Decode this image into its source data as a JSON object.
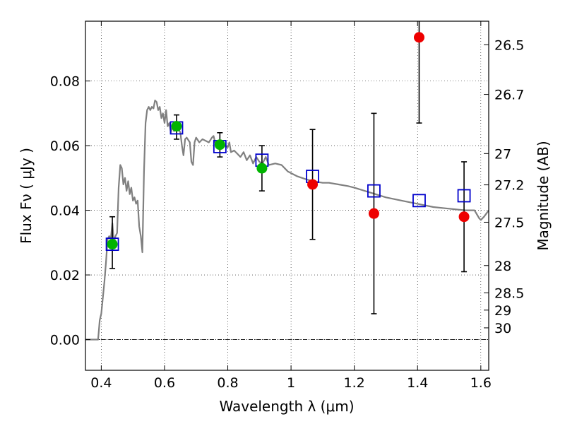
{
  "chart_data": {
    "type": "scatter",
    "xlabel": "Wavelength  λ (μm)",
    "ylabel": "Flux  Fν  ( μJy )",
    "y2label": "Magnitude (AB)",
    "xlim": [
      0.35,
      1.625
    ],
    "ylim": [
      -0.0095,
      0.0985
    ],
    "grid": true,
    "x_ticks": [
      {
        "value": 0.4,
        "label": "0.4"
      },
      {
        "value": 0.6,
        "label": "0.6"
      },
      {
        "value": 0.8,
        "label": "0.8"
      },
      {
        "value": 1.0,
        "label": "1"
      },
      {
        "value": 1.2,
        "label": "1.2"
      },
      {
        "value": 1.4,
        "label": "1.4"
      },
      {
        "value": 1.6,
        "label": "1.6"
      }
    ],
    "y_ticks": [
      {
        "value": 0.0,
        "label": "0.00"
      },
      {
        "value": 0.02,
        "label": "0.02"
      },
      {
        "value": 0.04,
        "label": "0.04"
      },
      {
        "value": 0.06,
        "label": "0.06"
      },
      {
        "value": 0.08,
        "label": "0.08"
      }
    ],
    "y2_ticks": [
      {
        "value": 26.5,
        "label": "26.5"
      },
      {
        "value": 26.7,
        "label": "26.7"
      },
      {
        "value": 27.0,
        "label": "27"
      },
      {
        "value": 27.2,
        "label": "27.2"
      },
      {
        "value": 27.5,
        "label": "27.5"
      },
      {
        "value": 28.0,
        "label": "28"
      },
      {
        "value": 28.5,
        "label": "28.5"
      },
      {
        "value": 29.0,
        "label": "29"
      },
      {
        "value": 30.0,
        "label": "30"
      }
    ],
    "series": [
      {
        "kind": "model_sed",
        "color": "#808080",
        "points": [
          [
            0.35,
            0.0
          ],
          [
            0.38,
            0.0
          ],
          [
            0.39,
            0.0
          ],
          [
            0.395,
            0.006
          ],
          [
            0.4,
            0.008
          ],
          [
            0.41,
            0.018
          ],
          [
            0.415,
            0.024
          ],
          [
            0.42,
            0.031
          ],
          [
            0.425,
            0.032
          ],
          [
            0.43,
            0.031
          ],
          [
            0.435,
            0.036
          ],
          [
            0.44,
            0.03
          ],
          [
            0.445,
            0.032
          ],
          [
            0.45,
            0.033
          ],
          [
            0.455,
            0.047
          ],
          [
            0.46,
            0.054
          ],
          [
            0.465,
            0.053
          ],
          [
            0.47,
            0.048
          ],
          [
            0.475,
            0.05
          ],
          [
            0.48,
            0.046
          ],
          [
            0.485,
            0.049
          ],
          [
            0.49,
            0.045
          ],
          [
            0.495,
            0.047
          ],
          [
            0.5,
            0.043
          ],
          [
            0.505,
            0.044
          ],
          [
            0.51,
            0.042
          ],
          [
            0.515,
            0.043
          ],
          [
            0.52,
            0.035
          ],
          [
            0.525,
            0.032
          ],
          [
            0.53,
            0.027
          ],
          [
            0.535,
            0.052
          ],
          [
            0.54,
            0.067
          ],
          [
            0.545,
            0.071
          ],
          [
            0.55,
            0.072
          ],
          [
            0.555,
            0.071
          ],
          [
            0.56,
            0.072
          ],
          [
            0.565,
            0.0715
          ],
          [
            0.57,
            0.074
          ],
          [
            0.575,
            0.0735
          ],
          [
            0.58,
            0.071
          ],
          [
            0.585,
            0.072
          ],
          [
            0.59,
            0.0685
          ],
          [
            0.595,
            0.07
          ],
          [
            0.6,
            0.067
          ],
          [
            0.605,
            0.071
          ],
          [
            0.61,
            0.066
          ],
          [
            0.615,
            0.067
          ],
          [
            0.62,
            0.064
          ],
          [
            0.625,
            0.066
          ],
          [
            0.63,
            0.0645
          ],
          [
            0.64,
            0.066
          ],
          [
            0.65,
            0.064
          ],
          [
            0.655,
            0.06
          ],
          [
            0.66,
            0.057
          ],
          [
            0.665,
            0.062
          ],
          [
            0.67,
            0.0625
          ],
          [
            0.68,
            0.061
          ],
          [
            0.685,
            0.055
          ],
          [
            0.69,
            0.054
          ],
          [
            0.695,
            0.061
          ],
          [
            0.7,
            0.0625
          ],
          [
            0.71,
            0.061
          ],
          [
            0.72,
            0.062
          ],
          [
            0.73,
            0.0615
          ],
          [
            0.74,
            0.061
          ],
          [
            0.75,
            0.0625
          ],
          [
            0.755,
            0.063
          ],
          [
            0.76,
            0.061
          ],
          [
            0.77,
            0.061
          ],
          [
            0.78,
            0.0605
          ],
          [
            0.79,
            0.06
          ],
          [
            0.8,
            0.0595
          ],
          [
            0.805,
            0.061
          ],
          [
            0.81,
            0.058
          ],
          [
            0.82,
            0.0585
          ],
          [
            0.83,
            0.0575
          ],
          [
            0.84,
            0.0565
          ],
          [
            0.85,
            0.058
          ],
          [
            0.86,
            0.0555
          ],
          [
            0.87,
            0.057
          ],
          [
            0.88,
            0.0545
          ],
          [
            0.89,
            0.0565
          ],
          [
            0.9,
            0.055
          ],
          [
            0.91,
            0.0545
          ],
          [
            0.92,
            0.0565
          ],
          [
            0.93,
            0.054
          ],
          [
            0.95,
            0.0545
          ],
          [
            0.97,
            0.054
          ],
          [
            0.99,
            0.052
          ],
          [
            1.0,
            0.0515
          ],
          [
            1.02,
            0.0505
          ],
          [
            1.05,
            0.0495
          ],
          [
            1.07,
            0.049
          ],
          [
            1.1,
            0.0485
          ],
          [
            1.12,
            0.0485
          ],
          [
            1.15,
            0.048
          ],
          [
            1.18,
            0.0475
          ],
          [
            1.2,
            0.047
          ],
          [
            1.25,
            0.0455
          ],
          [
            1.3,
            0.044
          ],
          [
            1.35,
            0.043
          ],
          [
            1.4,
            0.042
          ],
          [
            1.45,
            0.041
          ],
          [
            1.5,
            0.0405
          ],
          [
            1.55,
            0.04
          ],
          [
            1.58,
            0.04
          ],
          [
            1.595,
            0.0375
          ],
          [
            1.6,
            0.037
          ],
          [
            1.61,
            0.038
          ],
          [
            1.625,
            0.04
          ]
        ]
      },
      {
        "kind": "model_band_flux",
        "color": "#0000cc",
        "marker": "open-square",
        "points": [
          [
            0.435,
            0.0295
          ],
          [
            0.638,
            0.0655
          ],
          [
            0.775,
            0.0597
          ],
          [
            0.908,
            0.0555
          ],
          [
            1.068,
            0.0505
          ],
          [
            1.262,
            0.046
          ],
          [
            1.405,
            0.043
          ],
          [
            1.547,
            0.0445
          ]
        ]
      },
      {
        "kind": "observed",
        "color": "#00b400",
        "marker": "filled-circle",
        "points": [
          {
            "x": 0.435,
            "y": 0.0295,
            "yerr_low": 0.0075,
            "yerr_high": 0.0085
          },
          {
            "x": 0.638,
            "y": 0.066,
            "yerr_low": 0.004,
            "yerr_high": 0.0035
          },
          {
            "x": 0.775,
            "y": 0.0603,
            "yerr_low": 0.0038,
            "yerr_high": 0.0037
          },
          {
            "x": 0.908,
            "y": 0.053,
            "yerr_low": 0.007,
            "yerr_high": 0.007
          }
        ]
      },
      {
        "kind": "observed",
        "color": "#ee0000",
        "marker": "filled-circle",
        "points": [
          {
            "x": 1.068,
            "y": 0.048,
            "yerr_low": 0.017,
            "yerr_high": 0.017
          },
          {
            "x": 1.262,
            "y": 0.039,
            "yerr_low": 0.031,
            "yerr_high": 0.031
          },
          {
            "x": 1.405,
            "y": 0.0935,
            "yerr_low": 0.0265,
            "yerr_high": 0.0265
          },
          {
            "x": 1.547,
            "y": 0.038,
            "yerr_low": 0.017,
            "yerr_high": 0.017
          }
        ]
      }
    ]
  }
}
